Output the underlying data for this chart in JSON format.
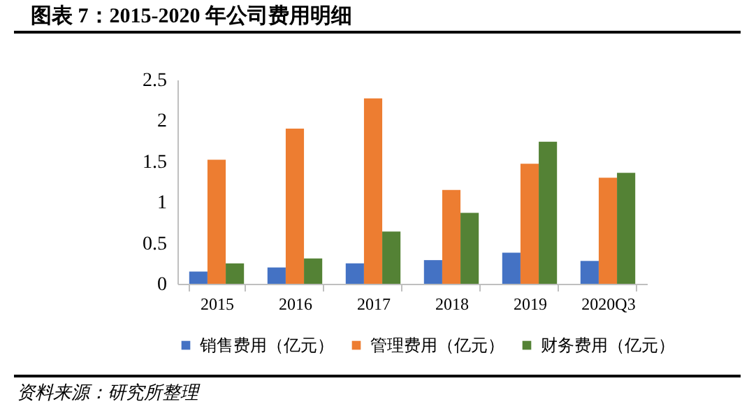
{
  "chart_data": {
    "type": "bar",
    "title": "图表 7：2015-2020 年公司费用明细",
    "categories": [
      "2015",
      "2016",
      "2017",
      "2018",
      "2019",
      "2020Q3"
    ],
    "series": [
      {
        "name": "销售费用（亿元）",
        "color": "#4472c4",
        "values": [
          0.15,
          0.2,
          0.25,
          0.29,
          0.38,
          0.28
        ]
      },
      {
        "name": "管理费用（亿元）",
        "color": "#ed7d31",
        "values": [
          1.52,
          1.9,
          2.27,
          1.15,
          1.47,
          1.3
        ]
      },
      {
        "name": "财务费用（亿元）",
        "color": "#548235",
        "values": [
          0.25,
          0.31,
          0.64,
          0.87,
          1.74,
          1.36
        ]
      }
    ],
    "ylim": [
      0,
      2.5
    ],
    "yticks": [
      0,
      0.5,
      1,
      1.5,
      2,
      2.5
    ],
    "grid": false,
    "legend": "bottom",
    "annotations": [
      "资料来源：研究所整理"
    ]
  }
}
